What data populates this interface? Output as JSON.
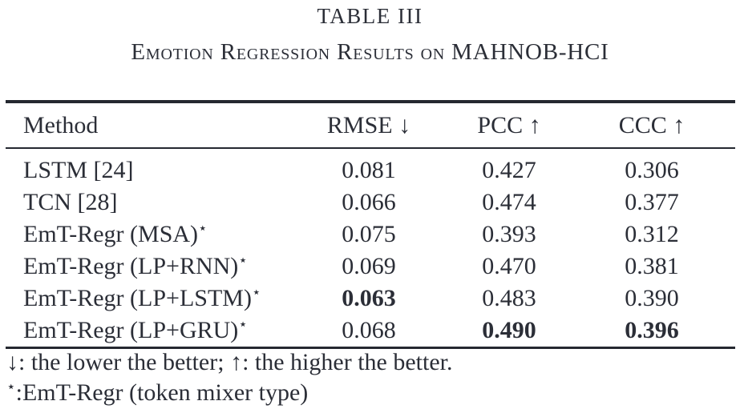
{
  "title": "TABLE III",
  "subtitle": "Emotion Regression Results on MAHNOB-HCI",
  "table": {
    "headers": {
      "method": "Method",
      "rmse": "RMSE ↓",
      "pcc": "PCC ↑",
      "ccc": "CCC ↑"
    },
    "rows": [
      {
        "method": "LSTM [24]",
        "star": "",
        "rmse": "0.081",
        "pcc": "0.427",
        "ccc": "0.306"
      },
      {
        "method": "TCN [28]",
        "star": "",
        "rmse": "0.066",
        "pcc": "0.474",
        "ccc": "0.377"
      },
      {
        "method": "EmT-Regr (MSA)",
        "star": "⋆",
        "rmse": "0.075",
        "pcc": "0.393",
        "ccc": "0.312"
      },
      {
        "method": "EmT-Regr (LP+RNN)",
        "star": "⋆",
        "rmse": "0.069",
        "pcc": "0.470",
        "ccc": "0.381"
      },
      {
        "method": "EmT-Regr (LP+LSTM)",
        "star": "⋆",
        "rmse": "0.063",
        "pcc": "0.483",
        "ccc": "0.390"
      },
      {
        "method": "EmT-Regr (LP+GRU)",
        "star": "⋆",
        "rmse": "0.068",
        "pcc": "0.490",
        "ccc": "0.396"
      }
    ]
  },
  "footnotes": {
    "line1": "↓: the lower the better; ↑: the higher the better.",
    "line2_star": "⋆",
    "line2_text": ":EmT-Regr (token mixer type)"
  },
  "colors": {
    "text": "#2b2e37",
    "rule": "#252830",
    "background": "#ffffff"
  }
}
